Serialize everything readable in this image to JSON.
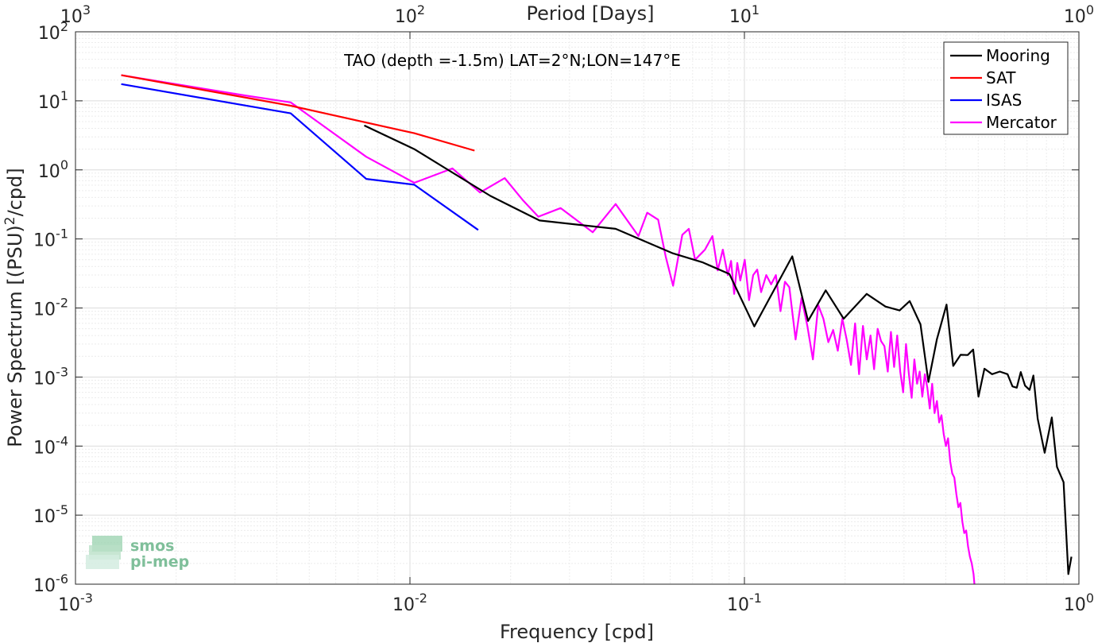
{
  "chart_data": {
    "type": "line",
    "title": "TAO (depth =-1.5m) LAT=2°N;LON=147°E",
    "xlabel": "Frequency [cpd]",
    "ylabel": "Power Spectrum [(PSU)^2/cpd]",
    "x2label": "Period [Days]",
    "xscale": "log",
    "yscale": "log",
    "xlim": [
      0.001,
      1
    ],
    "ylim": [
      1e-06,
      100
    ],
    "grid": true,
    "legend_position": "top-right",
    "x_ticks": [
      {
        "base": "10",
        "exp": "-3"
      },
      {
        "base": "10",
        "exp": "-2"
      },
      {
        "base": "10",
        "exp": "-1"
      },
      {
        "base": "10",
        "exp": "0"
      }
    ],
    "x2_ticks": [
      {
        "base": "10",
        "exp": "3"
      },
      {
        "base": "10",
        "exp": "2"
      },
      {
        "base": "10",
        "exp": "1"
      },
      {
        "base": "10",
        "exp": "0"
      }
    ],
    "y_ticks": [
      {
        "base": "10",
        "exp": "-6"
      },
      {
        "base": "10",
        "exp": "-5"
      },
      {
        "base": "10",
        "exp": "-4"
      },
      {
        "base": "10",
        "exp": "-3"
      },
      {
        "base": "10",
        "exp": "-2"
      },
      {
        "base": "10",
        "exp": "-1"
      },
      {
        "base": "10",
        "exp": "0"
      },
      {
        "base": "10",
        "exp": "1"
      },
      {
        "base": "10",
        "exp": "2"
      }
    ],
    "series": [
      {
        "name": "Mooring",
        "color": "#000000",
        "x": [
          0.0073,
          0.0103,
          0.0174,
          0.0244,
          0.0412,
          0.0611,
          0.0748,
          0.0902,
          0.107,
          0.139,
          0.155,
          0.175,
          0.198,
          0.232,
          0.264,
          0.291,
          0.312,
          0.336,
          0.355,
          0.376,
          0.402,
          0.421,
          0.443,
          0.465,
          0.483,
          0.501,
          0.522,
          0.55,
          0.58,
          0.612,
          0.633,
          0.652,
          0.67,
          0.69,
          0.712,
          0.731,
          0.753,
          0.79,
          0.83,
          0.86,
          0.9,
          0.93,
          0.95
        ],
        "y": [
          4.4,
          2.0,
          0.42,
          0.185,
          0.14,
          0.062,
          0.046,
          0.031,
          0.0054,
          0.056,
          0.0065,
          0.018,
          0.007,
          0.016,
          0.0105,
          0.0092,
          0.0126,
          0.0058,
          0.00085,
          0.0035,
          0.0112,
          0.00145,
          0.0021,
          0.00208,
          0.0025,
          0.00052,
          0.00132,
          0.0011,
          0.0012,
          0.0011,
          0.00073,
          0.0007,
          0.00118,
          0.00075,
          0.00065,
          0.00105,
          0.00025,
          8e-05,
          0.00026,
          5e-05,
          3e-05,
          1.4e-06,
          2.5e-06
        ]
      },
      {
        "name": "SAT",
        "color": "#ff0000",
        "x": [
          0.00137,
          0.0044,
          0.0103,
          0.0156
        ],
        "y": [
          23.5,
          8.5,
          3.4,
          1.9
        ]
      },
      {
        "name": "ISAS",
        "color": "#0000ff",
        "x": [
          0.00137,
          0.0044,
          0.0074,
          0.0103,
          0.016
        ],
        "y": [
          17.5,
          6.6,
          0.74,
          0.61,
          0.135
        ]
      },
      {
        "name": "Mercator",
        "color": "#ff00ff",
        "x": [
          0.00137,
          0.0032,
          0.0044,
          0.0074,
          0.0103,
          0.0134,
          0.0162,
          0.0192,
          0.0218,
          0.0242,
          0.0282,
          0.0352,
          0.0412,
          0.0482,
          0.0512,
          0.0552,
          0.0582,
          0.0612,
          0.0652,
          0.0682,
          0.0712,
          0.0762,
          0.0802,
          0.0832,
          0.0862,
          0.0892,
          0.0912,
          0.0932,
          0.0952,
          0.0972,
          0.1002,
          0.1032,
          0.1062,
          0.1092,
          0.1122,
          0.1162,
          0.1202,
          0.1242,
          0.1282,
          0.1322,
          0.1362,
          0.1422,
          0.1482,
          0.1542,
          0.1602,
          0.1662,
          0.1722,
          0.1782,
          0.1842,
          0.1902,
          0.1962,
          0.2022,
          0.2082,
          0.2142,
          0.2202,
          0.2262,
          0.2322,
          0.2382,
          0.2442,
          0.2502,
          0.2562,
          0.2622,
          0.2682,
          0.2742,
          0.2802,
          0.2862,
          0.2922,
          0.2982,
          0.3042,
          0.3102,
          0.3162,
          0.3222,
          0.3282,
          0.3342,
          0.3402,
          0.3462,
          0.3522,
          0.3582,
          0.3642,
          0.3702,
          0.3762,
          0.3822,
          0.3882,
          0.3942,
          0.4002,
          0.4062,
          0.4122,
          0.4182,
          0.4242,
          0.4302,
          0.4362,
          0.4422,
          0.4482,
          0.4542,
          0.4602,
          0.4662,
          0.4722,
          0.4782,
          0.4842,
          0.4872
        ],
        "y": [
          23.5,
          12.0,
          9.5,
          1.55,
          0.65,
          1.05,
          0.47,
          0.76,
          0.36,
          0.21,
          0.28,
          0.125,
          0.32,
          0.11,
          0.24,
          0.19,
          0.055,
          0.021,
          0.115,
          0.14,
          0.05,
          0.07,
          0.11,
          0.035,
          0.07,
          0.03,
          0.048,
          0.016,
          0.045,
          0.025,
          0.05,
          0.013,
          0.03,
          0.036,
          0.017,
          0.03,
          0.022,
          0.03,
          0.009,
          0.024,
          0.02,
          0.0035,
          0.014,
          0.0055,
          0.0018,
          0.011,
          0.007,
          0.0032,
          0.0048,
          0.0024,
          0.007,
          0.0035,
          0.0015,
          0.006,
          0.0011,
          0.0055,
          0.0018,
          0.004,
          0.0013,
          0.005,
          0.0033,
          0.0028,
          0.0012,
          0.0045,
          0.0014,
          0.004,
          0.0012,
          0.0006,
          0.003,
          0.0011,
          0.0005,
          0.0018,
          0.0008,
          0.0012,
          0.00052,
          0.0011,
          0.0007,
          0.00035,
          0.0008,
          0.0003,
          0.00045,
          0.00022,
          0.00028,
          0.00015,
          0.0001,
          0.00013,
          6e-05,
          4e-05,
          3.5e-05,
          2e-05,
          1.3e-05,
          1.5e-05,
          8e-06,
          5.5e-06,
          6e-06,
          3.5e-06,
          2.5e-06,
          2e-06,
          1.4e-06,
          1e-06
        ]
      }
    ]
  },
  "logo": {
    "line1": "smos",
    "line2": "pi-mep"
  }
}
